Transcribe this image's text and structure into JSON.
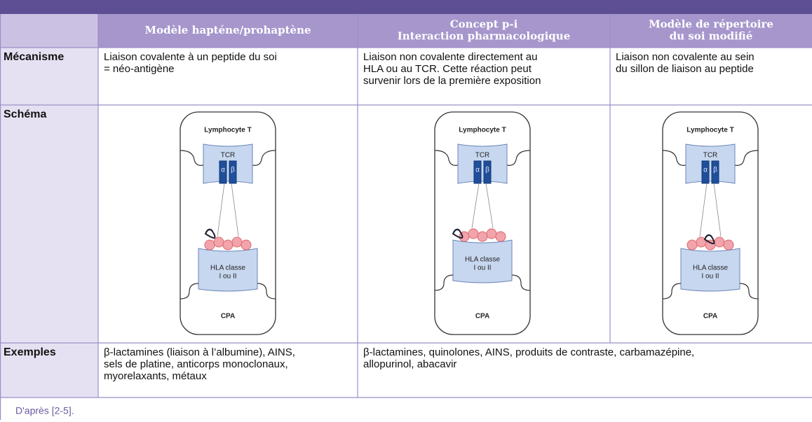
{
  "table": {
    "header": [
      [
        "Modèle hapténe/prohaptène"
      ],
      [
        "Concept p-i",
        "Interaction pharmacologique"
      ],
      [
        "Modèle de répertoire",
        "du soi modifié"
      ]
    ],
    "rows": [
      {
        "label": "Mécanisme",
        "cells": [
          [
            "Liaison covalente à un peptide du soi",
            "= néo-antigène"
          ],
          [
            "Liaison non covalente directement au",
            "HLA ou au TCR. Cette réaction peut",
            "survenir lors de la première exposition"
          ],
          [
            "Liaison non covalente au sein",
            "du sillon de liaison au peptide"
          ]
        ]
      },
      {
        "label": "Schéma"
      },
      {
        "label": "Exemples",
        "cells": [
          [
            "β-lactamines (liaison à l’albumine), AINS,",
            "sels de platine, anticorps monoclonaux,",
            "myorelaxants, métaux"
          ],
          [
            "β-lactamines, quinolones, AINS, produits de contraste, carbamazépine,",
            "allopurinol, abacavir"
          ]
        ]
      }
    ]
  },
  "diagram": {
    "cell": "Lymphocyte T",
    "receptor": "TCR",
    "chains": [
      "α",
      "β"
    ],
    "hla": [
      "HLA classe",
      "I ou II"
    ],
    "apc": "CPA"
  },
  "footnote": "D'après [2-5]."
}
